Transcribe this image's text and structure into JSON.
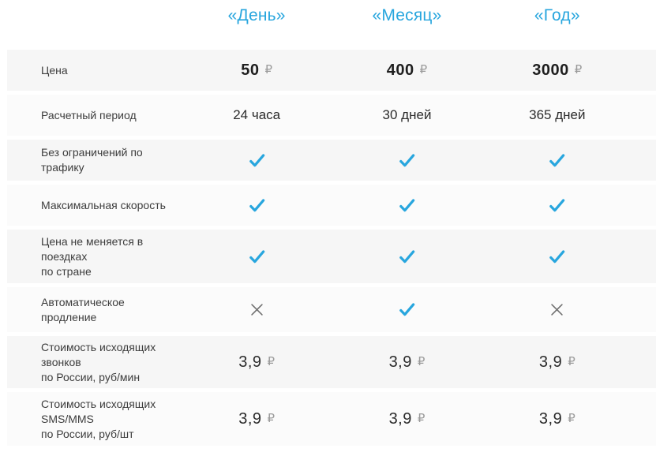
{
  "header": {
    "columns": [
      {
        "id": "day",
        "label": "«День»"
      },
      {
        "id": "month",
        "label": "«Месяц»"
      },
      {
        "id": "year",
        "label": "«Год»"
      }
    ]
  },
  "table": {
    "currency_symbol": "₽",
    "rows": [
      {
        "label": "Цена",
        "type": "price",
        "bold": true,
        "values": [
          "50",
          "400",
          "3000"
        ]
      },
      {
        "label": "Расчетный период",
        "type": "text",
        "values": [
          "24 часа",
          "30 дней",
          "365 дней"
        ]
      },
      {
        "label": "Без ограничений по трафику",
        "type": "mark",
        "values": [
          "check",
          "check",
          "check"
        ]
      },
      {
        "label": "Максимальная скорость",
        "type": "mark",
        "values": [
          "check",
          "check",
          "check"
        ]
      },
      {
        "label": "Цена не меняется в поездках\nпо стране",
        "type": "mark",
        "values": [
          "check",
          "check",
          "check"
        ]
      },
      {
        "label": "Автоматическое продление",
        "type": "mark",
        "values": [
          "cross",
          "check",
          "cross"
        ]
      },
      {
        "label": "Стоимость исходящих звонков\nпо России, руб/мин",
        "type": "price",
        "bold": false,
        "values": [
          "3,9",
          "3,9",
          "3,9"
        ]
      },
      {
        "label": "Стоимость исходящих SMS/MMS\nпо России, руб/шт",
        "type": "price",
        "bold": false,
        "values": [
          "3,9",
          "3,9",
          "3,9"
        ]
      }
    ]
  },
  "colors": {
    "accent": "#28a6de",
    "cross": "#6e6e6e",
    "currency": "#9b9b9b",
    "row_shaded": "#f6f6f6",
    "row_light": "#fbfbfb"
  }
}
